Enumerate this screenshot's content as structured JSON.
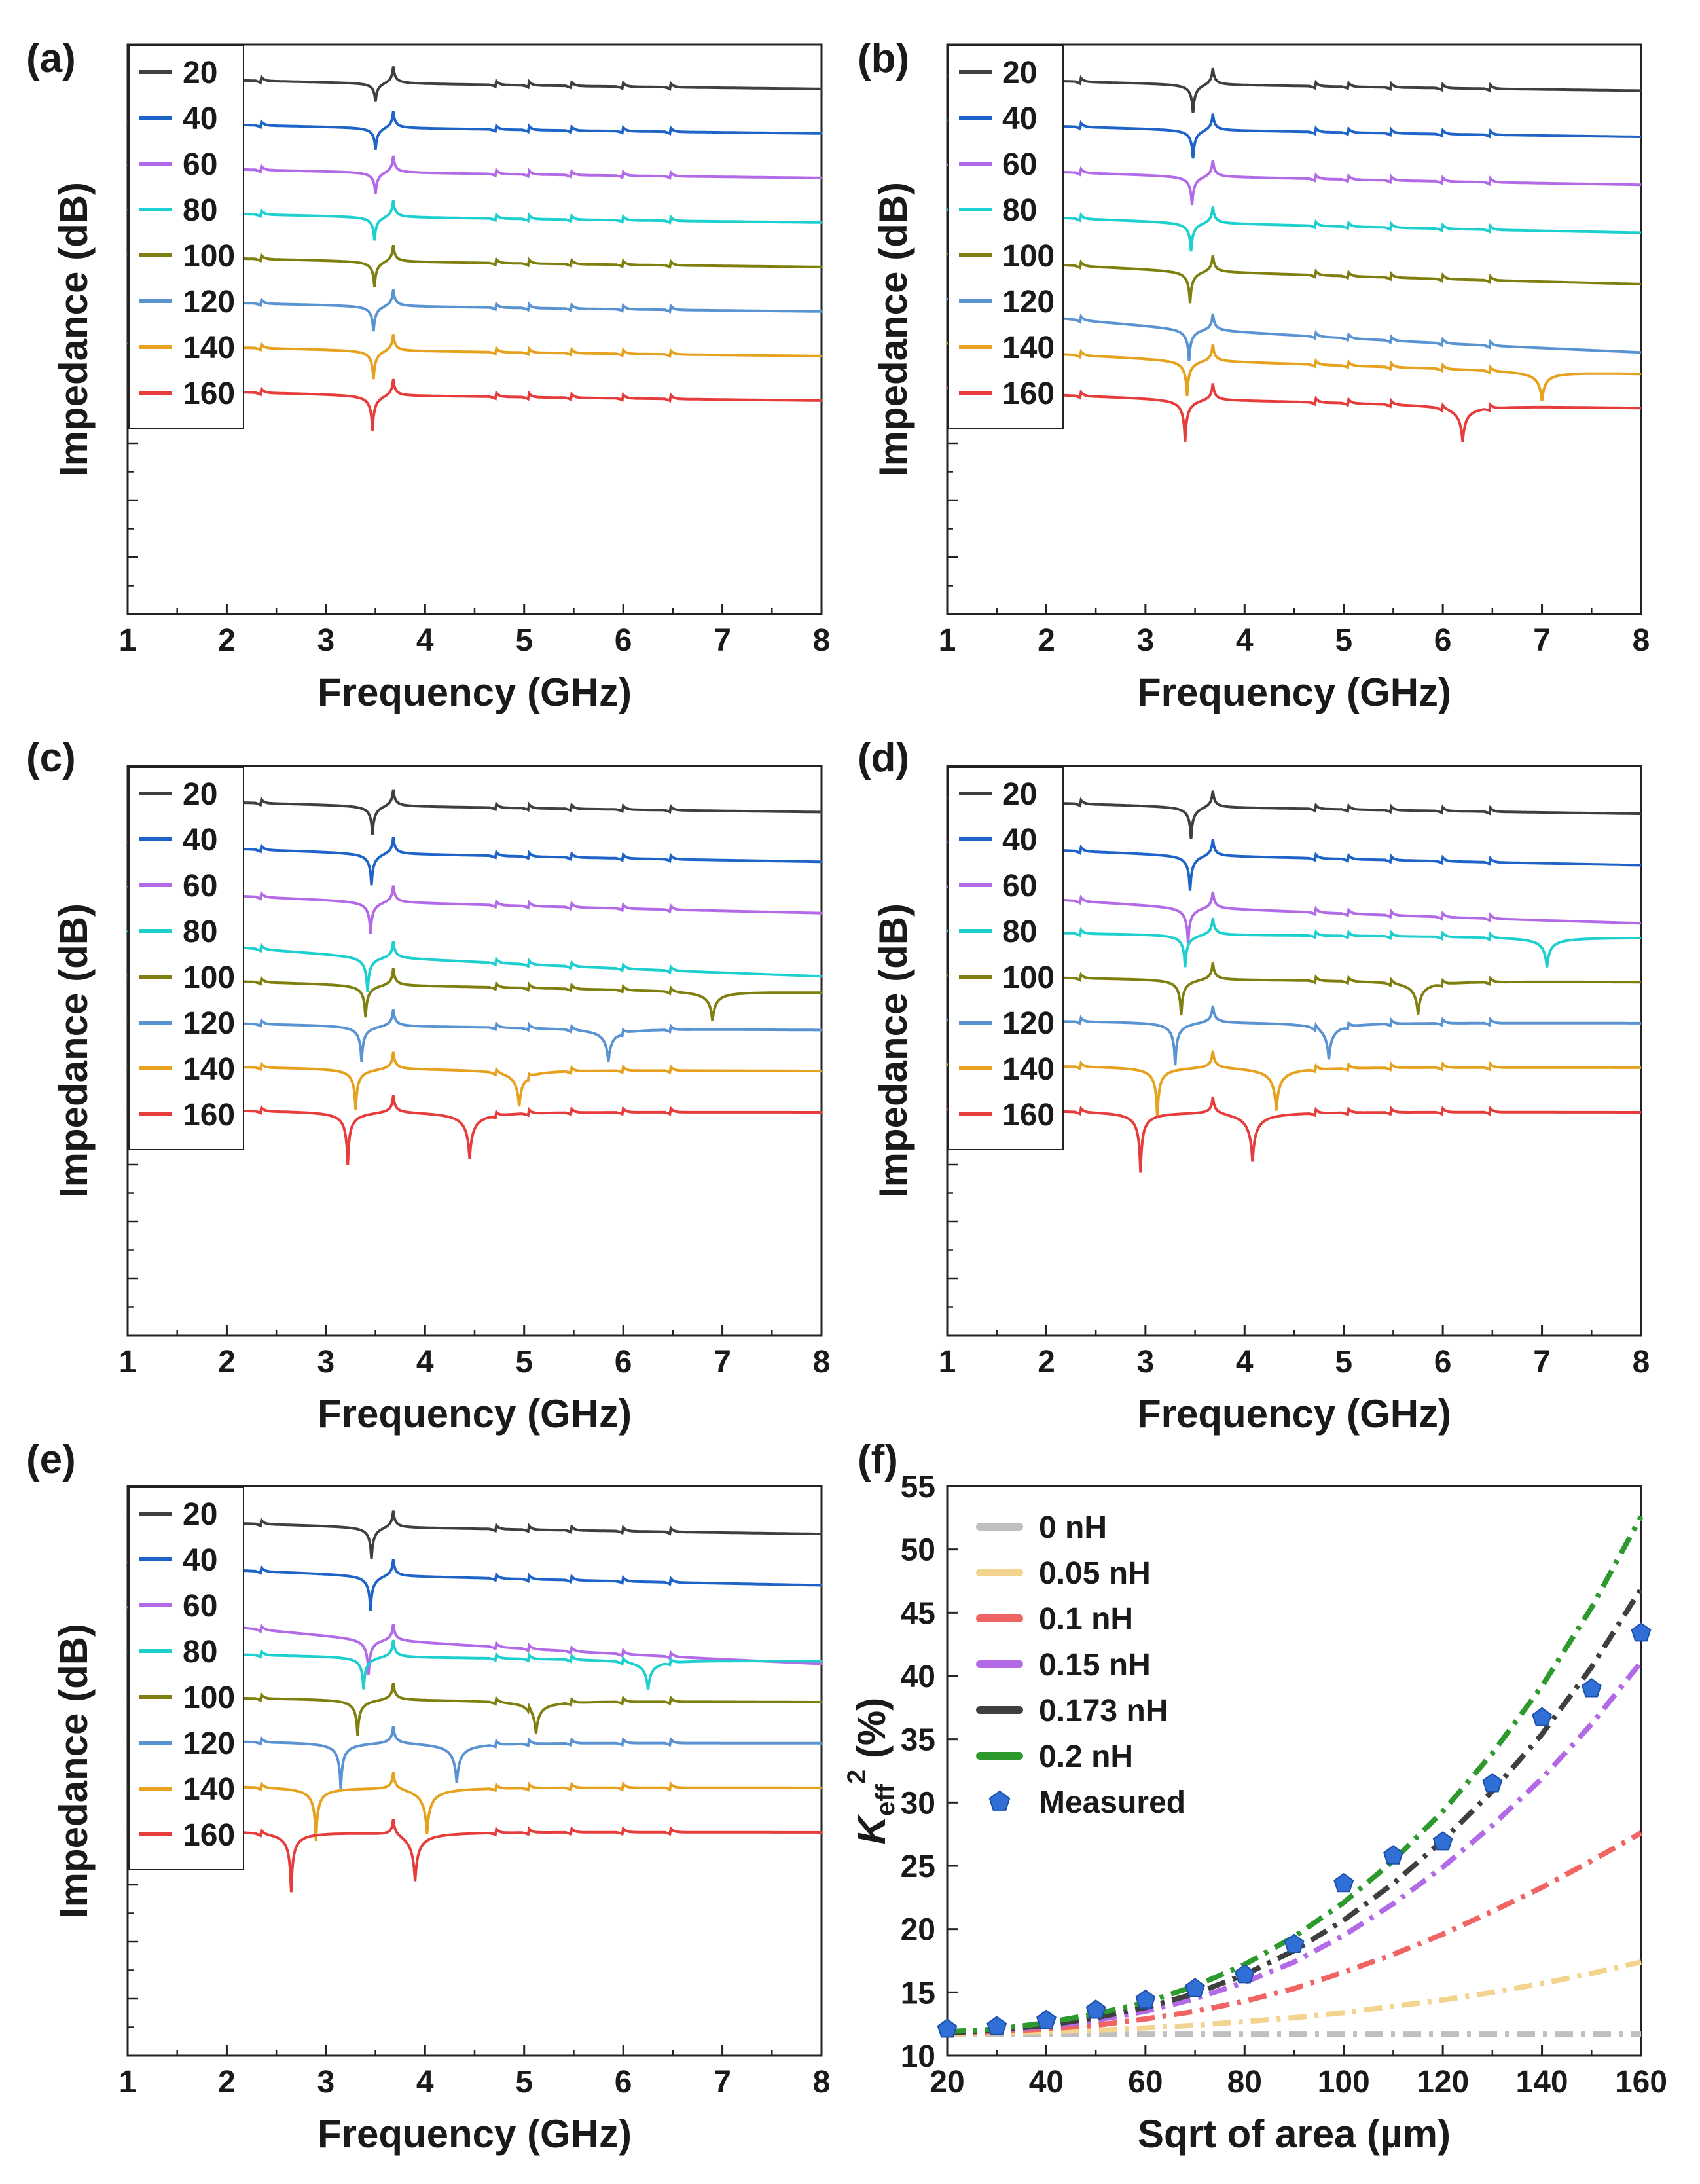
{
  "figure": {
    "panel_labels": [
      "(a)",
      "(b)",
      "(c)",
      "(d)",
      "(e)",
      "(f)"
    ]
  },
  "chart_data": [
    {
      "panel": "(a)",
      "type": "line",
      "xlabel": "Frequency (GHz)",
      "ylabel": "Impedance (dB)",
      "xlim": [
        1,
        8
      ],
      "xticks": [
        "1",
        "2",
        "3",
        "4",
        "5",
        "6",
        "7",
        "8"
      ],
      "legend": [
        "20",
        "40",
        "60",
        "80",
        "100",
        "120",
        "140",
        "160"
      ],
      "series": [
        {
          "name": "20",
          "color": "#3f3f3f",
          "start": 38,
          "end": 46,
          "dip_f": 3.5,
          "dip_depth": 12
        },
        {
          "name": "40",
          "color": "#1e64c8",
          "start": 38,
          "end": 46,
          "dip_f": 3.5,
          "dip_depth": 14
        },
        {
          "name": "60",
          "color": "#b26ae6",
          "start": 38,
          "end": 46,
          "dip_f": 3.5,
          "dip_depth": 14
        },
        {
          "name": "80",
          "color": "#1ecfcf",
          "start": 38,
          "end": 46,
          "dip_f": 3.49,
          "dip_depth": 15
        },
        {
          "name": "100",
          "color": "#7f7f10",
          "start": 38,
          "end": 46,
          "dip_f": 3.49,
          "dip_depth": 16
        },
        {
          "name": "120",
          "color": "#5a93d2",
          "start": 38,
          "end": 46,
          "dip_f": 3.48,
          "dip_depth": 16
        },
        {
          "name": "140",
          "color": "#e6a21e",
          "start": 38,
          "end": 46,
          "dip_f": 3.48,
          "dip_depth": 18
        },
        {
          "name": "160",
          "color": "#e63c3c",
          "start": 38,
          "end": 46,
          "dip_f": 3.47,
          "dip_depth": 22
        }
      ]
    },
    {
      "panel": "(b)",
      "type": "line",
      "xlabel": "Frequency (GHz)",
      "ylabel": "Impedance (dB)",
      "xlim": [
        1,
        8
      ],
      "xticks": [
        "1",
        "2",
        "3",
        "4",
        "5",
        "6",
        "7",
        "8"
      ],
      "legend": [
        "20",
        "40",
        "60",
        "80",
        "100",
        "120",
        "140",
        "160"
      ],
      "series": [
        {
          "name": "20",
          "color": "#3f3f3f",
          "start": 38,
          "end": 47,
          "dip_f": 3.48,
          "dip_depth": 18
        },
        {
          "name": "40",
          "color": "#1e64c8",
          "start": 38,
          "end": 48,
          "dip_f": 3.48,
          "dip_depth": 18
        },
        {
          "name": "60",
          "color": "#b26ae6",
          "start": 38,
          "end": 50,
          "dip_f": 3.47,
          "dip_depth": 18
        },
        {
          "name": "80",
          "color": "#1ecfcf",
          "start": 38,
          "end": 52,
          "dip_f": 3.46,
          "dip_depth": 18
        },
        {
          "name": "100",
          "color": "#7f7f10",
          "start": 38,
          "end": 56,
          "dip_f": 3.45,
          "dip_depth": 20
        },
        {
          "name": "120",
          "color": "#5a93d2",
          "start": 38,
          "end": 70,
          "dip_f": 3.44,
          "dip_depth": 20
        },
        {
          "name": "140",
          "color": "#e6a21e",
          "start": 38,
          "end": 56,
          "dip_f": 3.42,
          "dip_depth": 22,
          "sr_f": 7.0,
          "sr_depth": 18
        },
        {
          "name": "160",
          "color": "#e63c3c",
          "start": 38,
          "end": 50,
          "dip_f": 3.4,
          "dip_depth": 26,
          "sr_f": 6.2,
          "sr_depth": 22
        }
      ]
    },
    {
      "panel": "(c)",
      "type": "line",
      "xlabel": "Frequency (GHz)",
      "ylabel": "Impedance (dB)",
      "xlim": [
        1,
        8
      ],
      "xticks": [
        "1",
        "2",
        "3",
        "4",
        "5",
        "6",
        "7",
        "8"
      ],
      "legend": [
        "20",
        "40",
        "60",
        "80",
        "100",
        "120",
        "140",
        "160"
      ],
      "series": [
        {
          "name": "20",
          "color": "#3f3f3f",
          "start": 38,
          "end": 47,
          "dip_f": 3.47,
          "dip_depth": 18
        },
        {
          "name": "40",
          "color": "#1e64c8",
          "start": 38,
          "end": 50,
          "dip_f": 3.46,
          "dip_depth": 20
        },
        {
          "name": "60",
          "color": "#b26ae6",
          "start": 38,
          "end": 54,
          "dip_f": 3.45,
          "dip_depth": 20
        },
        {
          "name": "80",
          "color": "#1ecfcf",
          "start": 38,
          "end": 65,
          "dip_f": 3.42,
          "dip_depth": 22
        },
        {
          "name": "100",
          "color": "#7f7f10",
          "start": 38,
          "end": 48,
          "dip_f": 3.4,
          "dip_depth": 20,
          "sr_f": 6.9,
          "sr_depth": 18
        },
        {
          "name": "120",
          "color": "#5a93d2",
          "start": 38,
          "end": 44,
          "dip_f": 3.36,
          "dip_depth": 22,
          "sr_f": 5.85,
          "sr_depth": 20
        },
        {
          "name": "140",
          "color": "#e6a21e",
          "start": 38,
          "end": 42,
          "dip_f": 3.3,
          "dip_depth": 25,
          "sr_f": 4.95,
          "sr_depth": 22
        },
        {
          "name": "160",
          "color": "#e63c3c",
          "start": 38,
          "end": 40,
          "dip_f": 3.22,
          "dip_depth": 32,
          "sr_f": 4.45,
          "sr_depth": 28
        }
      ]
    },
    {
      "panel": "(d)",
      "type": "line",
      "xlabel": "Frequency (GHz)",
      "ylabel": "Impedance (dB)",
      "xlim": [
        1,
        8
      ],
      "xticks": [
        "1",
        "2",
        "3",
        "4",
        "5",
        "6",
        "7",
        "8"
      ],
      "legend": [
        "20",
        "40",
        "60",
        "80",
        "100",
        "120",
        "140",
        "160"
      ],
      "series": [
        {
          "name": "20",
          "color": "#3f3f3f",
          "start": 38,
          "end": 48,
          "dip_f": 3.46,
          "dip_depth": 20
        },
        {
          "name": "40",
          "color": "#1e64c8",
          "start": 38,
          "end": 52,
          "dip_f": 3.45,
          "dip_depth": 22
        },
        {
          "name": "60",
          "color": "#b26ae6",
          "start": 38,
          "end": 60,
          "dip_f": 3.43,
          "dip_depth": 22
        },
        {
          "name": "80",
          "color": "#1ecfcf",
          "start": 38,
          "end": 42,
          "dip_f": 3.4,
          "dip_depth": 20,
          "sr_f": 7.05,
          "sr_depth": 18
        },
        {
          "name": "100",
          "color": "#7f7f10",
          "start": 38,
          "end": 42,
          "dip_f": 3.36,
          "dip_depth": 22,
          "sr_f": 5.75,
          "sr_depth": 20
        },
        {
          "name": "120",
          "color": "#5a93d2",
          "start": 38,
          "end": 40,
          "dip_f": 3.3,
          "dip_depth": 26,
          "sr_f": 4.85,
          "sr_depth": 22
        },
        {
          "name": "140",
          "color": "#e6a21e",
          "start": 38,
          "end": 40,
          "dip_f": 3.12,
          "dip_depth": 30,
          "sr_f": 4.32,
          "sr_depth": 26
        },
        {
          "name": "160",
          "color": "#e63c3c",
          "start": 38,
          "end": 40,
          "dip_f": 2.95,
          "dip_depth": 36,
          "sr_f": 4.08,
          "sr_depth": 30
        }
      ]
    },
    {
      "panel": "(e)",
      "type": "line",
      "xlabel": "Frequency (GHz)",
      "ylabel": "Impedance (dB)",
      "xlim": [
        1,
        8
      ],
      "xticks": [
        "1",
        "2",
        "3",
        "4",
        "5",
        "6",
        "7",
        "8"
      ],
      "legend": [
        "20",
        "40",
        "60",
        "80",
        "100",
        "120",
        "140",
        "160"
      ],
      "series": [
        {
          "name": "20",
          "color": "#3f3f3f",
          "start": 38,
          "end": 48,
          "dip_f": 3.46,
          "dip_depth": 20
        },
        {
          "name": "40",
          "color": "#1e64c8",
          "start": 38,
          "end": 52,
          "dip_f": 3.45,
          "dip_depth": 22
        },
        {
          "name": "60",
          "color": "#b26ae6",
          "start": 38,
          "end": 72,
          "dip_f": 3.43,
          "dip_depth": 22
        },
        {
          "name": "80",
          "color": "#1ecfcf",
          "start": 38,
          "end": 44,
          "dip_f": 3.38,
          "dip_depth": 20,
          "sr_f": 6.25,
          "sr_depth": 18
        },
        {
          "name": "100",
          "color": "#7f7f10",
          "start": 38,
          "end": 42,
          "dip_f": 3.32,
          "dip_depth": 22,
          "sr_f": 5.12,
          "sr_depth": 20
        },
        {
          "name": "120",
          "color": "#5a93d2",
          "start": 38,
          "end": 40,
          "dip_f": 3.15,
          "dip_depth": 28,
          "sr_f": 4.32,
          "sr_depth": 24
        },
        {
          "name": "140",
          "color": "#e6a21e",
          "start": 38,
          "end": 40,
          "dip_f": 2.9,
          "dip_depth": 32,
          "sr_f": 4.02,
          "sr_depth": 28
        },
        {
          "name": "160",
          "color": "#e63c3c",
          "start": 38,
          "end": 40,
          "dip_f": 2.65,
          "dip_depth": 36,
          "sr_f": 3.9,
          "sr_depth": 30
        }
      ]
    },
    {
      "panel": "(f)",
      "type": "scatter",
      "xlabel": "Sqrt of area (µm)",
      "ylabel_main": "K",
      "ylabel_sub": "eff",
      "ylabel_sup": "2",
      "ylabel_unit": " (%)",
      "xlim": [
        20,
        160
      ],
      "ylim": [
        10,
        55
      ],
      "xticks": [
        "20",
        "40",
        "60",
        "80",
        "100",
        "120",
        "140",
        "160"
      ],
      "yticks": [
        "10",
        "15",
        "20",
        "25",
        "30",
        "35",
        "40",
        "45",
        "50",
        "55"
      ],
      "legend_position": "top-left",
      "series": [
        {
          "name": "0 nH",
          "color": "#bfbfbf",
          "style": "dash-dot",
          "x": [
            20,
            30,
            40,
            50,
            60,
            70,
            80,
            90,
            100,
            110,
            120,
            130,
            140,
            150,
            160
          ],
          "y": [
            11.7,
            11.7,
            11.7,
            11.7,
            11.7,
            11.7,
            11.7,
            11.7,
            11.7,
            11.7,
            11.7,
            11.7,
            11.7,
            11.7,
            11.7
          ]
        },
        {
          "name": "0.05 nH",
          "color": "#f2d48e",
          "style": "dash-dot",
          "x": [
            20,
            30,
            40,
            50,
            60,
            70,
            80,
            90,
            100,
            110,
            120,
            130,
            140,
            150,
            160
          ],
          "y": [
            11.7,
            11.8,
            11.9,
            12.0,
            12.2,
            12.4,
            12.7,
            13.0,
            13.4,
            13.9,
            14.4,
            15.0,
            15.7,
            16.5,
            17.4
          ]
        },
        {
          "name": "0.1 nH",
          "color": "#f06464",
          "style": "dash-dot",
          "x": [
            20,
            30,
            40,
            50,
            60,
            70,
            80,
            90,
            100,
            110,
            120,
            130,
            140,
            150,
            160
          ],
          "y": [
            11.8,
            11.9,
            12.1,
            12.4,
            12.9,
            13.5,
            14.3,
            15.3,
            16.6,
            18.0,
            19.6,
            21.4,
            23.3,
            25.4,
            27.6
          ]
        },
        {
          "name": "0.15 nH",
          "color": "#b26ae6",
          "style": "dash-dot",
          "x": [
            20,
            30,
            40,
            50,
            60,
            70,
            80,
            90,
            100,
            110,
            120,
            130,
            140,
            150,
            160
          ],
          "y": [
            11.8,
            12.0,
            12.3,
            12.8,
            13.5,
            14.5,
            15.8,
            17.4,
            19.5,
            22.0,
            24.9,
            28.2,
            31.9,
            36.2,
            41.1
          ]
        },
        {
          "name": "0.173 nH",
          "color": "#3f3f3f",
          "style": "dash-dot",
          "x": [
            20,
            30,
            40,
            50,
            60,
            70,
            80,
            90,
            100,
            110,
            120,
            130,
            140,
            150,
            160
          ],
          "y": [
            11.8,
            12.0,
            12.4,
            13.0,
            13.8,
            14.9,
            16.4,
            18.3,
            20.7,
            23.6,
            27.0,
            30.9,
            35.4,
            40.7,
            46.9
          ]
        },
        {
          "name": "0.2 nH",
          "color": "#2e9a2e",
          "style": "dash-dot",
          "x": [
            20,
            30,
            40,
            50,
            60,
            70,
            80,
            90,
            100,
            110,
            120,
            130,
            140,
            150,
            160
          ],
          "y": [
            11.9,
            12.1,
            12.6,
            13.3,
            14.2,
            15.5,
            17.2,
            19.4,
            22.1,
            25.4,
            29.3,
            33.9,
            39.2,
            45.4,
            52.6
          ]
        },
        {
          "name": "Measured",
          "color": "#2f6fd6",
          "style": "marker",
          "x": [
            20,
            30,
            40,
            50,
            60,
            70,
            80,
            90,
            100,
            110,
            120,
            130,
            140,
            150,
            160
          ],
          "y": [
            12.1,
            12.3,
            12.8,
            13.6,
            14.4,
            15.3,
            16.4,
            18.8,
            23.6,
            25.8,
            26.9,
            31.5,
            36.7,
            39.0,
            43.4
          ]
        }
      ]
    }
  ]
}
